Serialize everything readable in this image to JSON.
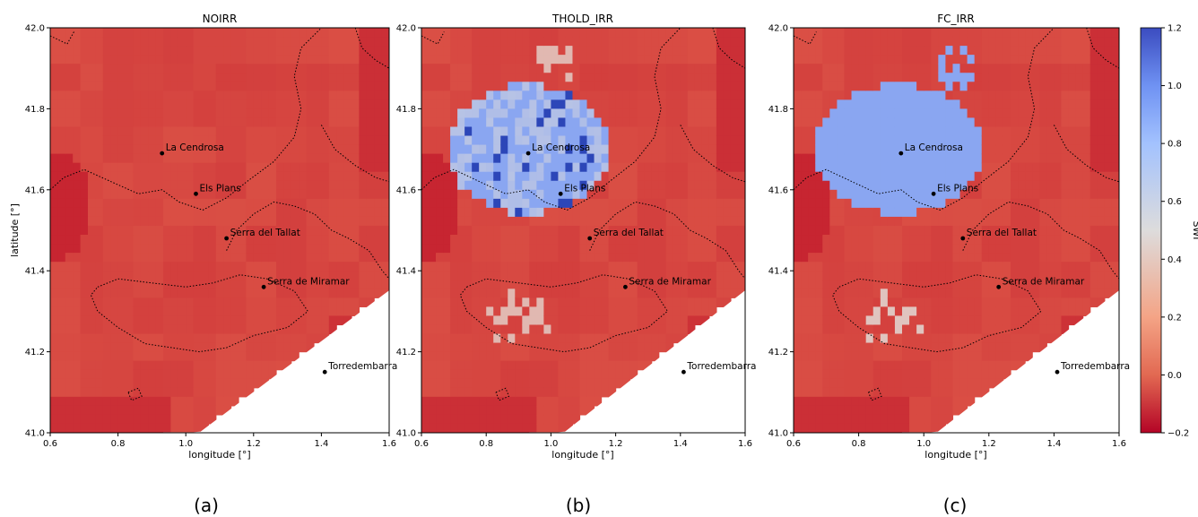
{
  "colors": {
    "dry": "#c21a2c",
    "mid": "#e4654f",
    "neutral": "#dfdcdb",
    "wet": "#8aa6f1",
    "very_wet": "#2c46b8",
    "contour": "#000000",
    "coast": "#ffffff"
  },
  "colorbar": {
    "label": "SWI",
    "min": -0.2,
    "max": 1.2,
    "ticks": [
      "1.2",
      "1.0",
      "0.8",
      "0.6",
      "0.4",
      "0.2",
      "0.0",
      "−0.2"
    ]
  },
  "axes": {
    "xlabel": "longitude [°]",
    "ylabel": "latitude [°]",
    "xticks": [
      "0.6",
      "0.8",
      "1.0",
      "1.2",
      "1.4",
      "1.6"
    ],
    "yticks": [
      "42.0",
      "41.8",
      "41.6",
      "41.4",
      "41.2",
      "41.0"
    ],
    "xlim": [
      0.6,
      1.6
    ],
    "ylim": [
      41.0,
      42.0
    ]
  },
  "panels": [
    {
      "title": "NOIRR",
      "caption": "(a)",
      "irrigation": "none"
    },
    {
      "title": "THOLD_IRR",
      "caption": "(b)",
      "irrigation": "threshold"
    },
    {
      "title": "FC_IRR",
      "caption": "(c)",
      "irrigation": "field-capacity"
    }
  ],
  "sites": [
    {
      "name": "La Cendrosa",
      "lon": 0.93,
      "lat": 41.69
    },
    {
      "name": "Els Plans",
      "lon": 1.03,
      "lat": 41.59
    },
    {
      "name": "Serra del Tallat",
      "lon": 1.12,
      "lat": 41.48
    },
    {
      "name": "Serra de Miramar",
      "lon": 1.23,
      "lat": 41.36
    },
    {
      "name": "Torredembarra",
      "lon": 1.41,
      "lat": 41.15
    }
  ]
}
